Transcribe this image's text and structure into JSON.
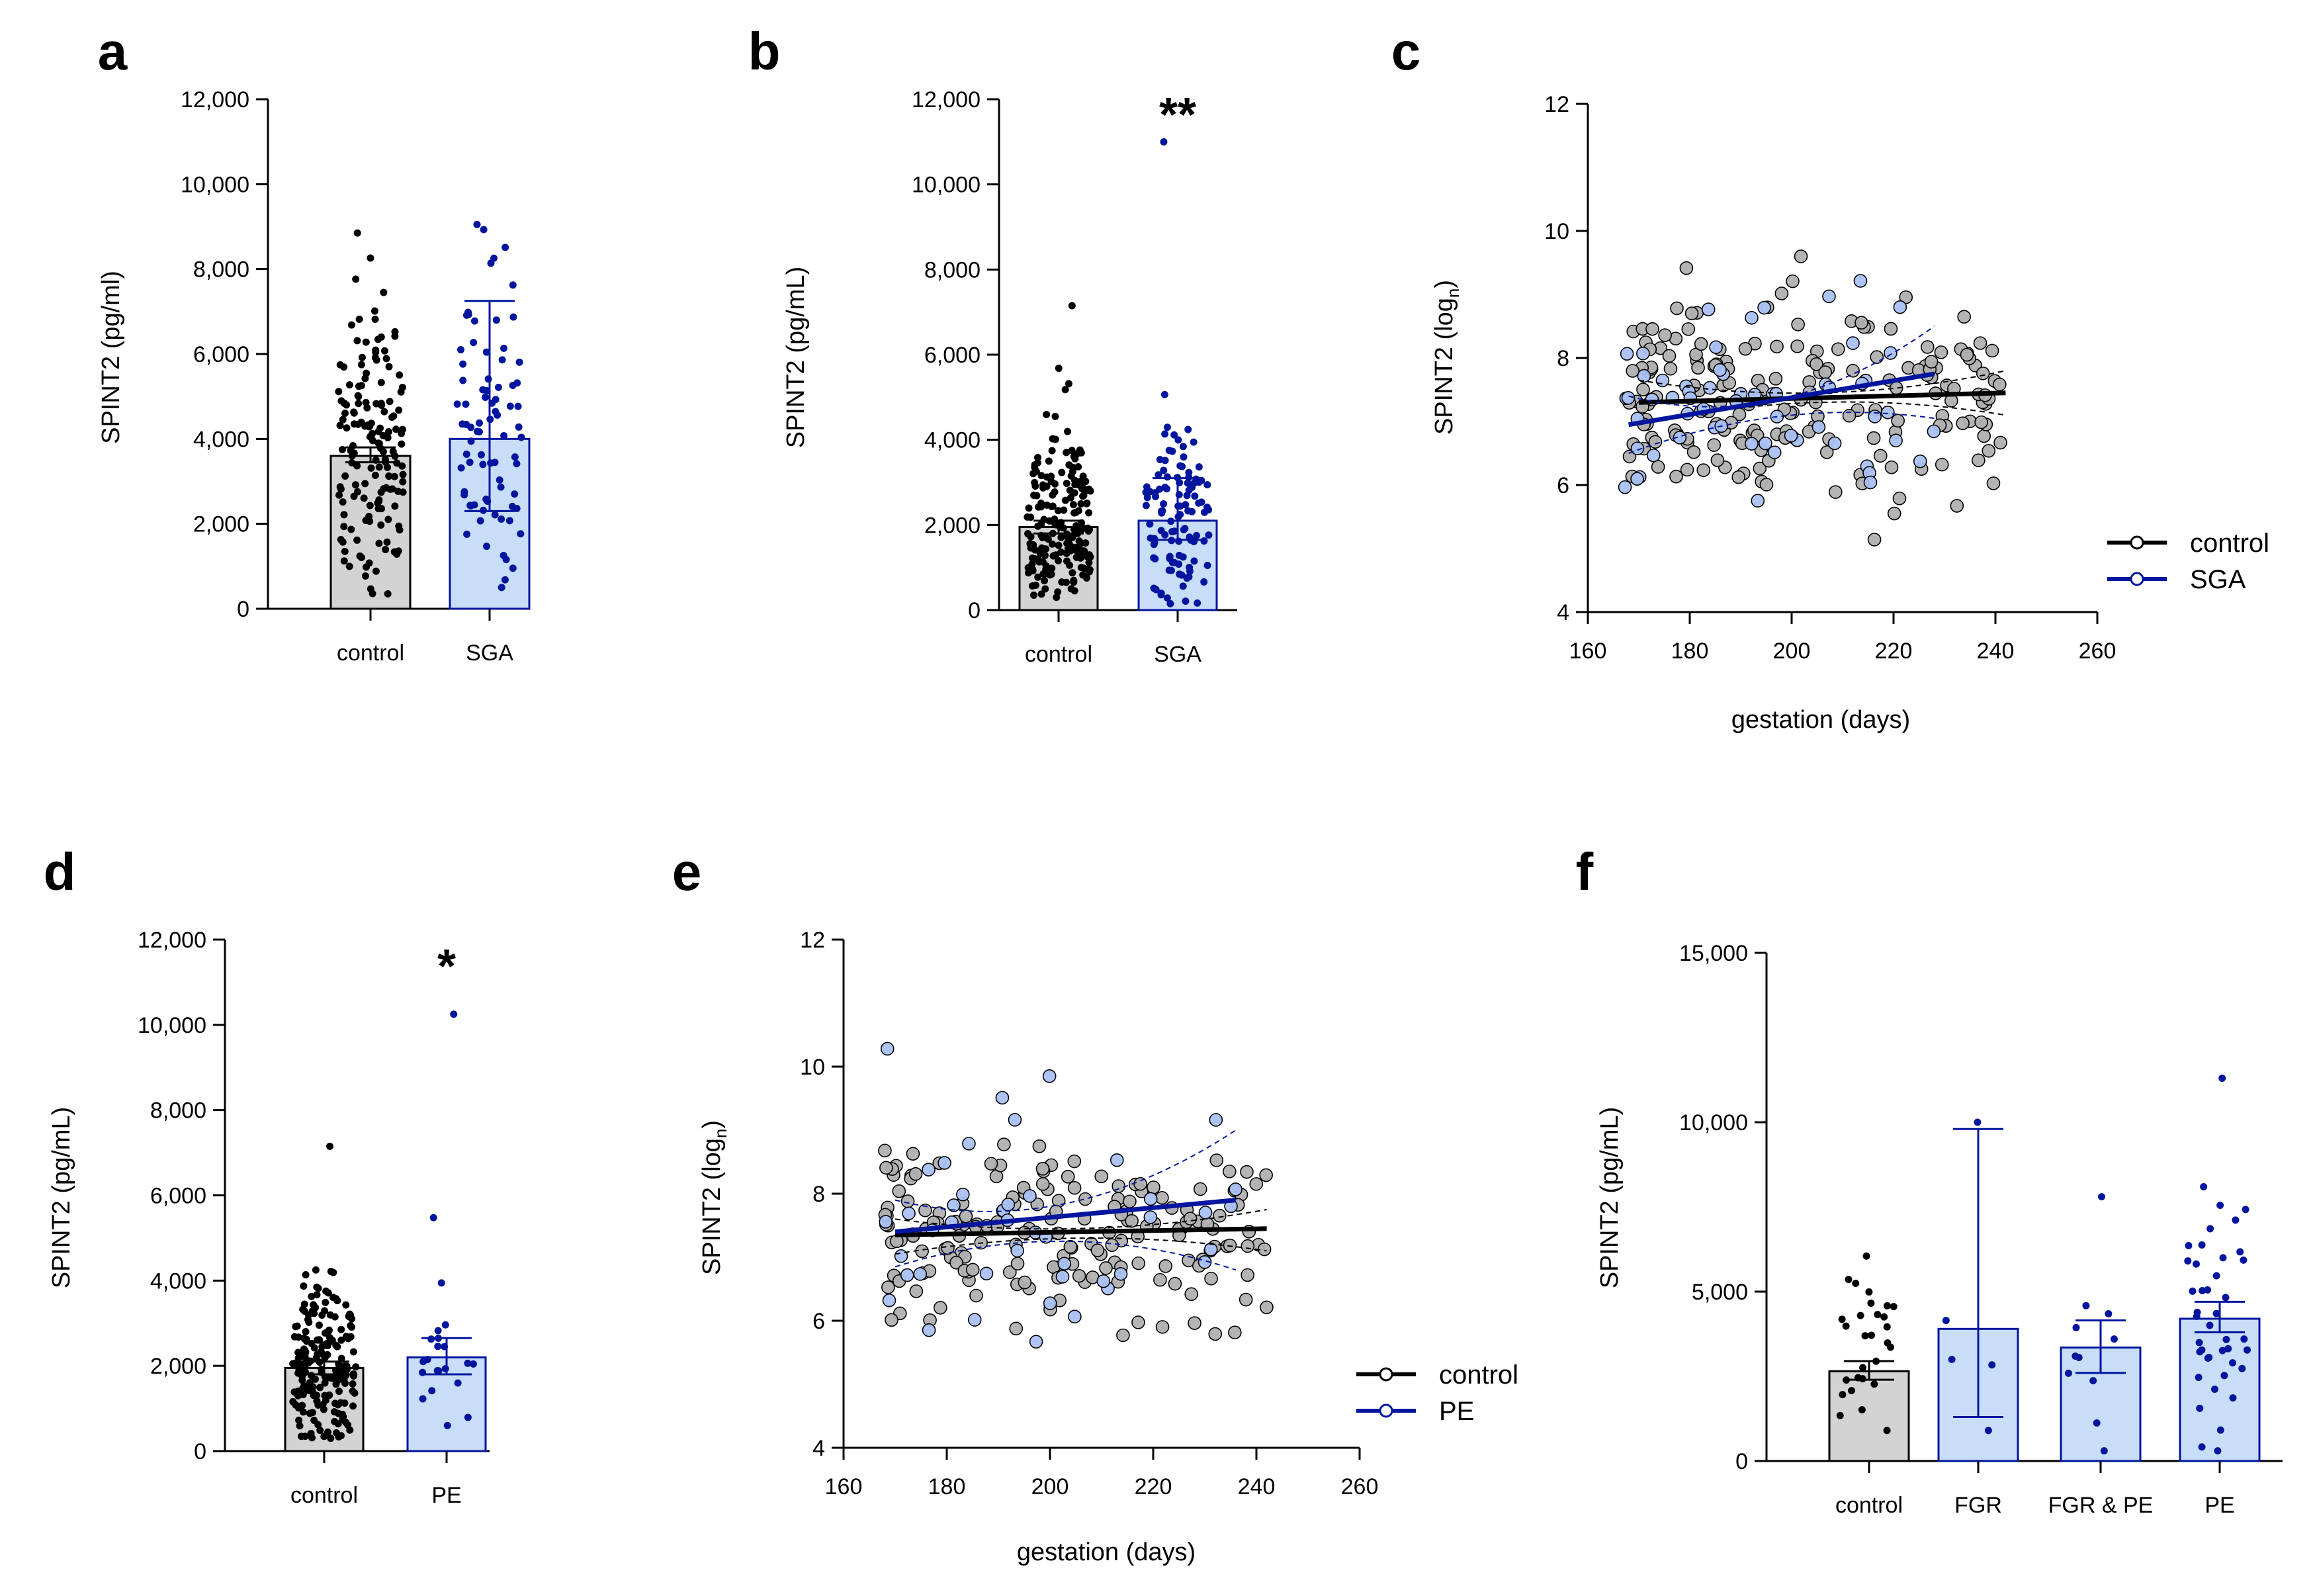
{
  "figure": {
    "panels": [
      {
        "id": "a",
        "label": "a",
        "type": "bar",
        "ylabel": "SPINT2 (pg/ml)",
        "categories": [
          "control",
          "SGA"
        ],
        "ylim": [
          0,
          12000
        ],
        "yticks": [
          0,
          2000,
          4000,
          6000,
          8000,
          10000,
          12000
        ],
        "ytick_labels": [
          "0",
          "2,000",
          "4,000",
          "6,000",
          "8,000",
          "10,000",
          "12,000"
        ],
        "means": [
          3600,
          4000
        ],
        "error_low": [
          3450,
          2300
        ],
        "error_high": [
          3800,
          7250
        ],
        "fills": [
          "#d3d3d3",
          "#c8ddf7"
        ],
        "edges": [
          "#000000",
          "#00159e"
        ],
        "points_n": [
          160,
          80
        ],
        "points_min": [
          350,
          500
        ],
        "points_max": [
          8850,
          9050
        ],
        "annotation": ""
      },
      {
        "id": "b",
        "label": "b",
        "type": "bar",
        "ylabel": "SPINT2 (pg/mL)",
        "categories": [
          "control",
          "SGA"
        ],
        "ylim": [
          0,
          12000
        ],
        "yticks": [
          0,
          2000,
          4000,
          6000,
          8000,
          10000,
          12000
        ],
        "ytick_labels": [
          "0",
          "2,000",
          "4,000",
          "6,000",
          "8,000",
          "10,000",
          "12,000"
        ],
        "means": [
          1950,
          2100
        ],
        "error_low": [
          1800,
          1650
        ],
        "error_high": [
          2100,
          3100
        ],
        "fills": [
          "#d3d3d3",
          "#c8ddf7"
        ],
        "edges": [
          "#000000",
          "#00159e"
        ],
        "points_n": [
          200,
          110
        ],
        "points_min": [
          300,
          150
        ],
        "points_max": [
          7150,
          11000
        ],
        "annotation": "**"
      },
      {
        "id": "c",
        "label": "c",
        "type": "scatter",
        "ylabel": "SPINT2 (log",
        "ylabel_sub": "n",
        "ylabel_end": ")",
        "xlabel": "gestation (days)",
        "xlim": [
          160,
          260
        ],
        "ylim": [
          4,
          12
        ],
        "xticks": [
          160,
          180,
          200,
          220,
          240,
          260
        ],
        "yticks": [
          4,
          6,
          8,
          10,
          12
        ],
        "series": [
          {
            "name": "control",
            "color": "#000000",
            "fill": "#b0b0b0",
            "fit": [
              [
                170,
                7.3
              ],
              [
                242,
                7.45
              ]
            ],
            "ci_upper": [
              [
                170,
                7.65
              ],
              [
                205,
                7.45
              ],
              [
                242,
                7.8
              ]
            ],
            "ci_lower": [
              [
                170,
                6.95
              ],
              [
                205,
                7.3
              ],
              [
                242,
                7.1
              ]
            ],
            "n": 190,
            "xrange": [
              168,
              242
            ],
            "ymean": 7.4,
            "ysd": 1.05
          },
          {
            "name": "SGA",
            "color": "#00159e",
            "fill": "#a9c1f4",
            "fit": [
              [
                168,
                6.95
              ],
              [
                228,
                7.75
              ]
            ],
            "ci_upper": [
              [
                168,
                7.4
              ],
              [
                200,
                7.4
              ],
              [
                228,
                8.5
              ]
            ],
            "ci_lower": [
              [
                168,
                6.5
              ],
              [
                200,
                7.1
              ],
              [
                228,
                7.05
              ]
            ],
            "n": 60,
            "xrange": [
              167,
              228
            ],
            "ymean": 7.3,
            "ysd": 1.1
          }
        ]
      },
      {
        "id": "d",
        "label": "d",
        "type": "bar",
        "ylabel": "SPINT2 (pg/mL)",
        "categories": [
          "control",
          "PE"
        ],
        "ylim": [
          0,
          12000
        ],
        "yticks": [
          0,
          2000,
          4000,
          6000,
          8000,
          10000,
          12000
        ],
        "ytick_labels": [
          "0",
          "2,000",
          "4,000",
          "6,000",
          "8,000",
          "10,000",
          "12,000"
        ],
        "means": [
          1950,
          2200
        ],
        "error_low": [
          1800,
          1800
        ],
        "error_high": [
          2100,
          2650
        ],
        "fills": [
          "#d3d3d3",
          "#c8ddf7"
        ],
        "edges": [
          "#000000",
          "#00159e"
        ],
        "points_n": [
          200,
          22
        ],
        "points_min": [
          300,
          600
        ],
        "points_max": [
          7150,
          10250
        ],
        "annotation": "*"
      },
      {
        "id": "e",
        "label": "e",
        "type": "scatter",
        "ylabel": "SPINT2 (log",
        "ylabel_sub": "n",
        "ylabel_end": ")",
        "xlabel": "gestation (days)",
        "xlim": [
          160,
          260
        ],
        "ylim": [
          4,
          12
        ],
        "xticks": [
          160,
          180,
          200,
          220,
          240,
          260
        ],
        "yticks": [
          4,
          6,
          8,
          10,
          12
        ],
        "series": [
          {
            "name": "control",
            "color": "#000000",
            "fill": "#b0b0b0",
            "fit": [
              [
                170,
                7.35
              ],
              [
                242,
                7.45
              ]
            ],
            "ci_upper": [
              [
                170,
                7.6
              ],
              [
                205,
                7.45
              ],
              [
                242,
                7.75
              ]
            ],
            "ci_lower": [
              [
                170,
                7.05
              ],
              [
                205,
                7.3
              ],
              [
                242,
                7.1
              ]
            ],
            "n": 180,
            "xrange": [
              168,
              242
            ],
            "ymean": 7.35,
            "ysd": 1.0
          },
          {
            "name": "PE",
            "color": "#00159e",
            "fill": "#a9c1f4",
            "fit": [
              [
                170,
                7.4
              ],
              [
                236,
                7.9
              ]
            ],
            "ci_upper": [
              [
                170,
                7.9
              ],
              [
                200,
                7.8
              ],
              [
                236,
                9.0
              ]
            ],
            "ci_lower": [
              [
                170,
                6.85
              ],
              [
                200,
                7.25
              ],
              [
                236,
                6.8
              ]
            ],
            "n": 45,
            "xrange": [
              168,
              236
            ],
            "ymean": 7.6,
            "ysd": 1.3
          }
        ]
      },
      {
        "id": "f",
        "label": "f",
        "type": "bar",
        "ylabel": "SPINT2 (pg/mL)",
        "categories": [
          "control",
          "FGR",
          "FGR & PE",
          "PE"
        ],
        "ylim": [
          0,
          15000
        ],
        "yticks": [
          0,
          5000,
          10000,
          15000
        ],
        "ytick_labels": [
          "0",
          "5,000",
          "10,000",
          "15,000"
        ],
        "means": [
          2650,
          3900,
          3350,
          4200
        ],
        "error_low": [
          2400,
          1300,
          2600,
          3800
        ],
        "error_high": [
          2950,
          9800,
          4150,
          4700
        ],
        "fills": [
          "#d3d3d3",
          "#c8ddf7",
          "#c8ddf7",
          "#c8ddf7"
        ],
        "edges": [
          "#000000",
          "#00159e",
          "#00159e",
          "#00159e"
        ],
        "points_n": [
          28,
          5,
          11,
          42
        ],
        "points_min": [
          900,
          900,
          300,
          300
        ],
        "points_max": [
          6050,
          10000,
          7800,
          11300
        ],
        "annotation": ""
      }
    ]
  }
}
